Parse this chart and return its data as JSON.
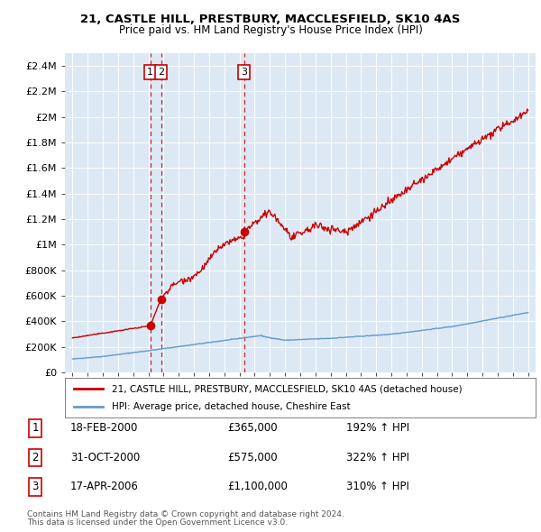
{
  "title1": "21, CASTLE HILL, PRESTBURY, MACCLESFIELD, SK10 4AS",
  "title2": "Price paid vs. HM Land Registry's House Price Index (HPI)",
  "ylabel_ticks": [
    "£0",
    "£200K",
    "£400K",
    "£600K",
    "£800K",
    "£1M",
    "£1.2M",
    "£1.4M",
    "£1.6M",
    "£1.8M",
    "£2M",
    "£2.2M",
    "£2.4M"
  ],
  "ytick_values": [
    0,
    200000,
    400000,
    600000,
    800000,
    1000000,
    1200000,
    1400000,
    1600000,
    1800000,
    2000000,
    2200000,
    2400000
  ],
  "xlim": [
    1994.5,
    2025.5
  ],
  "ylim": [
    0,
    2500000
  ],
  "plot_bg_color": "#dce9f5",
  "fig_bg_color": "#ffffff",
  "red_line_color": "#cc0000",
  "blue_line_color": "#6699cc",
  "grid_color": "#ffffff",
  "legend_line1": "21, CASTLE HILL, PRESTBURY, MACCLESFIELD, SK10 4AS (detached house)",
  "legend_line2": "HPI: Average price, detached house, Cheshire East",
  "sale1_date": "18-FEB-2000",
  "sale1_price": "£365,000",
  "sale1_hpi": "192% ↑ HPI",
  "sale1_year": 2000.12,
  "sale1_value": 365000,
  "sale2_date": "31-OCT-2000",
  "sale2_price": "£575,000",
  "sale2_hpi": "322% ↑ HPI",
  "sale2_year": 2000.83,
  "sale2_value": 575000,
  "sale3_date": "17-APR-2006",
  "sale3_price": "£1,100,000",
  "sale3_hpi": "310% ↑ HPI",
  "sale3_year": 2006.29,
  "sale3_value": 1100000,
  "footnote1": "Contains HM Land Registry data © Crown copyright and database right 2024.",
  "footnote2": "This data is licensed under the Open Government Licence v3.0."
}
